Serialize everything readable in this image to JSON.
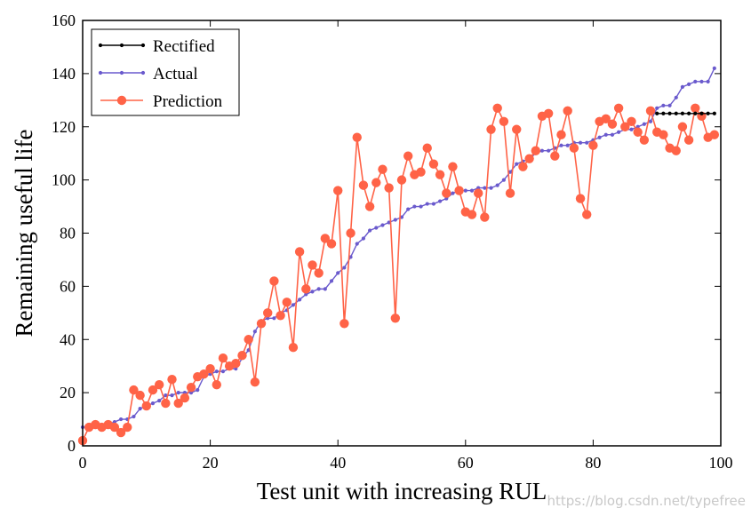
{
  "chart_data": {
    "type": "line",
    "title": "",
    "xlabel": "Test unit with increasing RUL",
    "ylabel": "Remaining useful life",
    "xlim": [
      0,
      100
    ],
    "ylim": [
      0,
      160
    ],
    "xticks": [
      0,
      20,
      40,
      60,
      80,
      100
    ],
    "yticks": [
      0,
      20,
      40,
      60,
      80,
      100,
      120,
      140,
      160
    ],
    "grid": false,
    "legend_position": "top-left",
    "series": [
      {
        "name": "Rectified",
        "color": "#000000",
        "marker": "small-dot",
        "x": [
          90,
          91,
          92,
          93,
          94,
          95,
          96,
          97,
          98,
          99
        ],
        "y": [
          125,
          125,
          125,
          125,
          125,
          125,
          125,
          125,
          125,
          125
        ]
      },
      {
        "name": "Actual",
        "color": "#6a5acd",
        "marker": "small-dot",
        "x": [
          0,
          1,
          2,
          3,
          4,
          5,
          6,
          7,
          8,
          9,
          10,
          11,
          12,
          13,
          14,
          15,
          16,
          17,
          18,
          19,
          20,
          21,
          22,
          23,
          24,
          25,
          26,
          27,
          28,
          29,
          30,
          31,
          32,
          33,
          34,
          35,
          36,
          37,
          38,
          39,
          40,
          41,
          42,
          43,
          44,
          45,
          46,
          47,
          48,
          49,
          50,
          51,
          52,
          53,
          54,
          55,
          56,
          57,
          58,
          59,
          60,
          61,
          62,
          63,
          64,
          65,
          66,
          67,
          68,
          69,
          70,
          71,
          72,
          73,
          74,
          75,
          76,
          77,
          78,
          79,
          80,
          81,
          82,
          83,
          84,
          85,
          86,
          87,
          88,
          89,
          90,
          91,
          92,
          93,
          94,
          95,
          96,
          97,
          98,
          99
        ],
        "y": [
          7,
          7,
          7,
          8,
          8,
          9,
          10,
          10,
          11,
          14,
          15,
          16,
          17,
          19,
          19,
          20,
          20,
          20,
          21,
          26,
          27,
          28,
          28,
          29,
          29,
          33,
          36,
          43,
          47,
          48,
          48,
          50,
          51,
          53,
          55,
          57,
          58,
          59,
          59,
          62,
          65,
          67,
          71,
          76,
          78,
          81,
          82,
          83,
          84,
          85,
          86,
          89,
          90,
          90,
          91,
          91,
          92,
          93,
          95,
          96,
          96,
          96,
          97,
          97,
          97,
          98,
          100,
          103,
          106,
          107,
          108,
          110,
          111,
          111,
          112,
          113,
          113,
          114,
          114,
          114,
          115,
          116,
          117,
          117,
          118,
          119,
          119,
          120,
          121,
          122,
          127,
          128,
          128,
          131,
          135,
          136,
          137,
          137,
          137,
          142
        ]
      },
      {
        "name": "Prediction",
        "color": "#ff6347",
        "marker": "circle",
        "x": [
          0,
          1,
          2,
          3,
          4,
          5,
          6,
          7,
          8,
          9,
          10,
          11,
          12,
          13,
          14,
          15,
          16,
          17,
          18,
          19,
          20,
          21,
          22,
          23,
          24,
          25,
          26,
          27,
          28,
          29,
          30,
          31,
          32,
          33,
          34,
          35,
          36,
          37,
          38,
          39,
          40,
          41,
          42,
          43,
          44,
          45,
          46,
          47,
          48,
          49,
          50,
          51,
          52,
          53,
          54,
          55,
          56,
          57,
          58,
          59,
          60,
          61,
          62,
          63,
          64,
          65,
          66,
          67,
          68,
          69,
          70,
          71,
          72,
          73,
          74,
          75,
          76,
          77,
          78,
          79,
          80,
          81,
          82,
          83,
          84,
          85,
          86,
          87,
          88,
          89,
          90,
          91,
          92,
          93,
          94,
          95,
          96,
          97,
          98,
          99
        ],
        "y": [
          2,
          7,
          8,
          7,
          8,
          7,
          5,
          7,
          21,
          19,
          15,
          21,
          23,
          16,
          25,
          16,
          18,
          22,
          26,
          27,
          29,
          23,
          33,
          30,
          31,
          34,
          40,
          24,
          46,
          50,
          62,
          49,
          54,
          37,
          73,
          59,
          68,
          65,
          78,
          76,
          96,
          46,
          80,
          116,
          98,
          90,
          99,
          104,
          97,
          48,
          100,
          109,
          102,
          103,
          112,
          106,
          102,
          95,
          105,
          96,
          88,
          87,
          95,
          86,
          119,
          127,
          122,
          95,
          119,
          105,
          108,
          111,
          124,
          125,
          109,
          117,
          126,
          112,
          93,
          87,
          113,
          122,
          123,
          121,
          127,
          120,
          122,
          118,
          115,
          126,
          118,
          117,
          112,
          111,
          120,
          115,
          127,
          124,
          116,
          117
        ]
      }
    ]
  },
  "watermark": "https://blog.csdn.net/typefree"
}
